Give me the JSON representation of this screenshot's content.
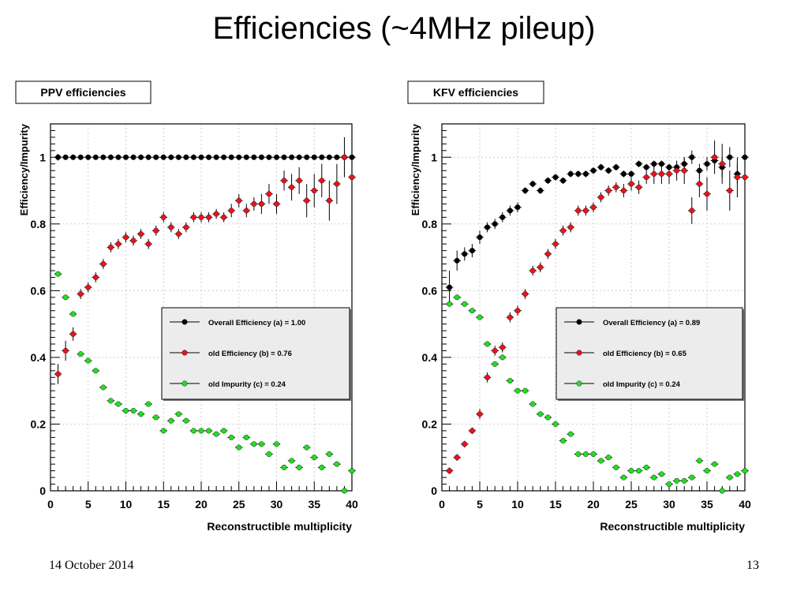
{
  "slide": {
    "title": "Efficiencies (~4MHz pileup)",
    "date": "14 October 2014",
    "page_number": "13"
  },
  "colors": {
    "black_series": "#000000",
    "red_series": "#e8141c",
    "green_series": "#22dd22",
    "legend_bg": "#ececec",
    "frame": "#000000"
  },
  "chart_data": [
    {
      "type": "scatter",
      "title": "PPV efficiencies",
      "xlabel": "Reconstructible multiplicity",
      "ylabel": "Efficiency/Impurity",
      "xlim": [
        0,
        40
      ],
      "ylim": [
        0,
        1.1
      ],
      "xticks": [
        0,
        5,
        10,
        15,
        20,
        25,
        30,
        35,
        40
      ],
      "yticks": [
        0,
        0.2,
        0.4,
        0.6,
        0.8,
        1
      ],
      "yticklabels": [
        "0",
        "0.2",
        "0.4",
        "0.6",
        "0.8",
        "1"
      ],
      "grid": true,
      "legend_position": "center-right",
      "series": [
        {
          "name": "Overall Efficiency (a) = 1.00",
          "color": "#000000",
          "x": [
            1,
            2,
            3,
            4,
            5,
            6,
            7,
            8,
            9,
            10,
            11,
            12,
            13,
            14,
            15,
            16,
            17,
            18,
            19,
            20,
            21,
            22,
            23,
            24,
            25,
            26,
            27,
            28,
            29,
            30,
            31,
            32,
            33,
            34,
            35,
            36,
            37,
            38,
            39,
            40
          ],
          "y": [
            1,
            1,
            1,
            1,
            1,
            1,
            1,
            1,
            1,
            1,
            1,
            1,
            1,
            1,
            1,
            1,
            1,
            1,
            1,
            1,
            1,
            1,
            1,
            1,
            1,
            1,
            1,
            1,
            1,
            1,
            1,
            1,
            1,
            1,
            1,
            1,
            1,
            1,
            1,
            1
          ],
          "err": [
            0.01,
            0,
            0,
            0,
            0,
            0,
            0,
            0,
            0,
            0,
            0,
            0,
            0,
            0,
            0,
            0,
            0,
            0,
            0,
            0,
            0,
            0,
            0,
            0,
            0,
            0,
            0,
            0,
            0,
            0,
            0,
            0,
            0,
            0,
            0,
            0,
            0,
            0,
            0,
            0
          ]
        },
        {
          "name": "old Efficiency (b) = 0.76",
          "color": "#e8141c",
          "x": [
            1,
            2,
            3,
            4,
            5,
            6,
            7,
            8,
            9,
            10,
            11,
            12,
            13,
            14,
            15,
            16,
            17,
            18,
            19,
            20,
            21,
            22,
            23,
            24,
            25,
            26,
            27,
            28,
            29,
            30,
            31,
            32,
            33,
            34,
            35,
            36,
            37,
            38,
            39,
            40
          ],
          "y": [
            0.35,
            0.42,
            0.47,
            0.59,
            0.61,
            0.64,
            0.68,
            0.73,
            0.74,
            0.76,
            0.75,
            0.77,
            0.74,
            0.78,
            0.82,
            0.79,
            0.77,
            0.79,
            0.82,
            0.82,
            0.82,
            0.83,
            0.82,
            0.84,
            0.87,
            0.84,
            0.86,
            0.86,
            0.89,
            0.86,
            0.93,
            0.91,
            0.93,
            0.87,
            0.9,
            0.93,
            0.87,
            0.92,
            1.0,
            0.94
          ],
          "err": [
            0.03,
            0.03,
            0.02,
            0.015,
            0.015,
            0.015,
            0.015,
            0.015,
            0.015,
            0.015,
            0.015,
            0.015,
            0.015,
            0.015,
            0.015,
            0.015,
            0.015,
            0.015,
            0.015,
            0.015,
            0.015,
            0.015,
            0.015,
            0.02,
            0.02,
            0.02,
            0.02,
            0.03,
            0.03,
            0.03,
            0.03,
            0.04,
            0.04,
            0.05,
            0.05,
            0.05,
            0.06,
            0.06,
            0.06,
            0.06
          ]
        },
        {
          "name": "old Impurity (c) = 0.24",
          "color": "#22dd22",
          "x": [
            1,
            2,
            3,
            4,
            5,
            6,
            7,
            8,
            9,
            10,
            11,
            12,
            13,
            14,
            15,
            16,
            17,
            18,
            19,
            20,
            21,
            22,
            23,
            24,
            25,
            26,
            27,
            28,
            29,
            30,
            31,
            32,
            33,
            34,
            35,
            36,
            37,
            38,
            39,
            40
          ],
          "y": [
            0.65,
            0.58,
            0.53,
            0.41,
            0.39,
            0.36,
            0.31,
            0.27,
            0.26,
            0.24,
            0.24,
            0.23,
            0.26,
            0.22,
            0.18,
            0.21,
            0.23,
            0.21,
            0.18,
            0.18,
            0.18,
            0.17,
            0.18,
            0.16,
            0.13,
            0.16,
            0.14,
            0.14,
            0.11,
            0.14,
            0.07,
            0.09,
            0.07,
            0.13,
            0.1,
            0.07,
            0.11,
            0.08,
            0.0,
            0.06
          ]
        }
      ]
    },
    {
      "type": "scatter",
      "title": "KFV efficiencies",
      "xlabel": "Reconstructible multiplicity",
      "ylabel": "Efficiency/Impurity",
      "xlim": [
        0,
        40
      ],
      "ylim": [
        0,
        1.1
      ],
      "xticks": [
        0,
        5,
        10,
        15,
        20,
        25,
        30,
        35,
        40
      ],
      "yticks": [
        0,
        0.2,
        0.4,
        0.6,
        0.8,
        1
      ],
      "yticklabels": [
        "0",
        "0.2",
        "0.4",
        "0.6",
        "0.8",
        "1"
      ],
      "grid": true,
      "legend_position": "center-right",
      "series": [
        {
          "name": "Overall Efficiency (a) = 0.89",
          "color": "#000000",
          "x": [
            1,
            2,
            3,
            4,
            5,
            6,
            7,
            8,
            9,
            10,
            11,
            12,
            13,
            14,
            15,
            16,
            17,
            18,
            19,
            20,
            21,
            22,
            23,
            24,
            25,
            26,
            27,
            28,
            29,
            30,
            31,
            32,
            33,
            34,
            35,
            36,
            37,
            38,
            39,
            40
          ],
          "y": [
            0.61,
            0.69,
            0.71,
            0.72,
            0.76,
            0.79,
            0.8,
            0.82,
            0.84,
            0.85,
            0.9,
            0.92,
            0.9,
            0.93,
            0.94,
            0.93,
            0.95,
            0.95,
            0.95,
            0.96,
            0.97,
            0.96,
            0.97,
            0.95,
            0.95,
            0.98,
            0.97,
            0.98,
            0.98,
            0.97,
            0.97,
            0.98,
            1.0,
            0.96,
            0.98,
            0.99,
            0.97,
            1.0,
            0.95,
            1.0
          ],
          "err": [
            0.05,
            0.03,
            0.02,
            0.02,
            0.02,
            0.015,
            0.015,
            0.015,
            0.015,
            0.015,
            0.01,
            0.01,
            0.01,
            0.01,
            0.01,
            0.01,
            0.01,
            0.01,
            0.01,
            0.01,
            0.01,
            0.01,
            0.01,
            0.01,
            0.01,
            0.01,
            0.01,
            0.01,
            0.01,
            0.01,
            0.01,
            0.02,
            0.02,
            0.02,
            0.02,
            0.02,
            0.03,
            0.03,
            0.03,
            0.03
          ]
        },
        {
          "name": "old Efficiency (b) = 0.65",
          "color": "#e8141c",
          "x": [
            1,
            2,
            3,
            4,
            5,
            6,
            7,
            8,
            9,
            10,
            11,
            12,
            13,
            14,
            15,
            16,
            17,
            18,
            19,
            20,
            21,
            22,
            23,
            24,
            25,
            26,
            27,
            28,
            29,
            30,
            31,
            32,
            33,
            34,
            35,
            36,
            37,
            38,
            39,
            40
          ],
          "y": [
            0.06,
            0.1,
            0.14,
            0.18,
            0.23,
            0.34,
            0.42,
            0.43,
            0.52,
            0.54,
            0.59,
            0.66,
            0.67,
            0.71,
            0.74,
            0.78,
            0.79,
            0.84,
            0.84,
            0.85,
            0.88,
            0.9,
            0.91,
            0.9,
            0.92,
            0.91,
            0.94,
            0.95,
            0.95,
            0.95,
            0.96,
            0.96,
            0.84,
            0.92,
            0.89,
            1.0,
            0.98,
            0.9,
            0.94,
            0.94
          ],
          "err": [
            0.01,
            0.01,
            0.01,
            0.01,
            0.015,
            0.015,
            0.015,
            0.015,
            0.015,
            0.015,
            0.015,
            0.015,
            0.015,
            0.015,
            0.015,
            0.015,
            0.015,
            0.015,
            0.015,
            0.015,
            0.015,
            0.015,
            0.015,
            0.02,
            0.02,
            0.02,
            0.02,
            0.03,
            0.03,
            0.03,
            0.03,
            0.04,
            0.04,
            0.04,
            0.05,
            0.05,
            0.06,
            0.06,
            0.06,
            0.06
          ]
        },
        {
          "name": "old Impurity (c) = 0.24",
          "color": "#22dd22",
          "x": [
            1,
            2,
            3,
            4,
            5,
            6,
            7,
            8,
            9,
            10,
            11,
            12,
            13,
            14,
            15,
            16,
            17,
            18,
            19,
            20,
            21,
            22,
            23,
            24,
            25,
            26,
            27,
            28,
            29,
            30,
            31,
            32,
            33,
            34,
            35,
            36,
            37,
            38,
            39,
            40
          ],
          "y": [
            0.56,
            0.58,
            0.56,
            0.54,
            0.52,
            0.44,
            0.38,
            0.4,
            0.33,
            0.3,
            0.3,
            0.26,
            0.23,
            0.22,
            0.2,
            0.15,
            0.17,
            0.11,
            0.11,
            0.11,
            0.09,
            0.1,
            0.07,
            0.04,
            0.06,
            0.06,
            0.07,
            0.04,
            0.05,
            0.02,
            0.03,
            0.03,
            0.04,
            0.09,
            0.06,
            0.08,
            0.0,
            0.04,
            0.05,
            0.06
          ]
        }
      ]
    }
  ]
}
